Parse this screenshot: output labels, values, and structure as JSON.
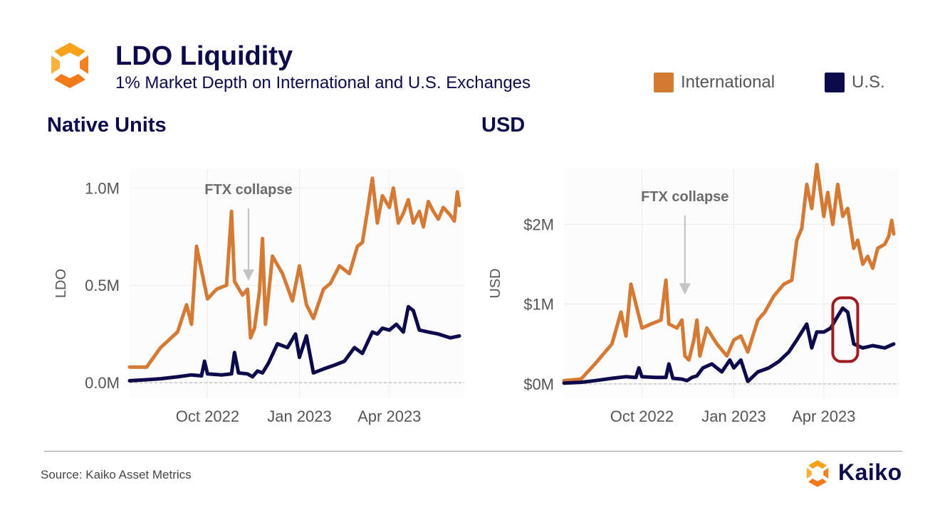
{
  "header": {
    "title": "LDO Liquidity",
    "subtitle": "1% Market Depth on International and U.S. Exchanges"
  },
  "legend": [
    {
      "label": "International",
      "color": "#D47A35"
    },
    {
      "label": "U.S.",
      "color": "#0C0A4A"
    }
  ],
  "footer": {
    "source": "Source: Kaiko Asset Metrics",
    "brand": "Kaiko"
  },
  "chart_data": [
    {
      "type": "line",
      "title": "Native Units",
      "ylabel": "LDO",
      "ytick_labels": [
        "0.0M",
        "0.5M",
        "1.0M"
      ],
      "ytick_values": [
        0,
        500000,
        1000000
      ],
      "xtick_labels": [
        "Oct 2022",
        "Jan 2023",
        "Apr 2023"
      ],
      "xtick_dates": [
        "2022-10-01",
        "2023-01-01",
        "2023-04-01"
      ],
      "xlim": [
        "2022-07-15",
        "2023-06-15"
      ],
      "ylim": [
        -80000,
        1100000
      ],
      "annotation": {
        "text": "FTX collapse",
        "date": "2022-11-11"
      },
      "series": [
        {
          "name": "International",
          "color": "#D47A35",
          "x": [
            "2022-07-15",
            "2022-08-01",
            "2022-08-15",
            "2022-09-01",
            "2022-09-10",
            "2022-09-15",
            "2022-09-20",
            "2022-10-01",
            "2022-10-10",
            "2022-10-20",
            "2022-10-25",
            "2022-10-28",
            "2022-11-05",
            "2022-11-10",
            "2022-11-13",
            "2022-11-17",
            "2022-11-22",
            "2022-11-25",
            "2022-11-28",
            "2022-12-05",
            "2022-12-15",
            "2022-12-25",
            "2023-01-01",
            "2023-01-08",
            "2023-01-15",
            "2023-01-25",
            "2023-02-01",
            "2023-02-10",
            "2023-02-20",
            "2023-02-28",
            "2023-03-05",
            "2023-03-10",
            "2023-03-15",
            "2023-03-20",
            "2023-03-25",
            "2023-04-01",
            "2023-04-05",
            "2023-04-10",
            "2023-04-15",
            "2023-04-20",
            "2023-04-25",
            "2023-05-01",
            "2023-05-05",
            "2023-05-10",
            "2023-05-15",
            "2023-05-20",
            "2023-05-25",
            "2023-06-01",
            "2023-06-05",
            "2023-06-08",
            "2023-06-10"
          ],
          "y": [
            80000,
            80000,
            180000,
            260000,
            400000,
            300000,
            700000,
            430000,
            480000,
            500000,
            880000,
            520000,
            450000,
            480000,
            230000,
            280000,
            470000,
            740000,
            300000,
            650000,
            560000,
            420000,
            600000,
            400000,
            330000,
            480000,
            510000,
            600000,
            560000,
            700000,
            720000,
            880000,
            1050000,
            820000,
            960000,
            900000,
            1000000,
            820000,
            870000,
            940000,
            820000,
            880000,
            800000,
            930000,
            880000,
            840000,
            900000,
            860000,
            830000,
            980000,
            910000
          ]
        },
        {
          "name": "U.S.",
          "color": "#0C0A4A",
          "x": [
            "2022-07-15",
            "2022-08-01",
            "2022-08-15",
            "2022-09-01",
            "2022-09-15",
            "2022-09-25",
            "2022-09-28",
            "2022-10-01",
            "2022-10-15",
            "2022-10-25",
            "2022-10-28",
            "2022-11-01",
            "2022-11-10",
            "2022-11-15",
            "2022-11-20",
            "2022-11-25",
            "2022-12-01",
            "2022-12-10",
            "2022-12-20",
            "2022-12-28",
            "2023-01-01",
            "2023-01-08",
            "2023-01-15",
            "2023-01-25",
            "2023-02-05",
            "2023-02-15",
            "2023-02-25",
            "2023-03-05",
            "2023-03-15",
            "2023-03-20",
            "2023-03-25",
            "2023-04-01",
            "2023-04-08",
            "2023-04-15",
            "2023-04-20",
            "2023-04-25",
            "2023-05-01",
            "2023-05-10",
            "2023-05-20",
            "2023-06-01",
            "2023-06-10"
          ],
          "y": [
            10000,
            15000,
            20000,
            30000,
            40000,
            35000,
            110000,
            45000,
            40000,
            45000,
            155000,
            50000,
            45000,
            30000,
            60000,
            50000,
            100000,
            200000,
            180000,
            250000,
            130000,
            240000,
            50000,
            70000,
            90000,
            110000,
            180000,
            150000,
            260000,
            250000,
            280000,
            270000,
            300000,
            260000,
            390000,
            370000,
            270000,
            260000,
            250000,
            230000,
            240000
          ]
        }
      ]
    },
    {
      "type": "line",
      "title": "USD",
      "ylabel": "USD",
      "ytick_labels": [
        "$0M",
        "$1M",
        "$2M"
      ],
      "ytick_values": [
        0,
        1000000,
        2000000
      ],
      "xtick_labels": [
        "Oct 2022",
        "Jan 2023",
        "Apr 2023"
      ],
      "xtick_dates": [
        "2022-10-01",
        "2023-01-01",
        "2023-04-01"
      ],
      "xlim": [
        "2022-07-15",
        "2023-06-15"
      ],
      "ylim": [
        -180000,
        2700000
      ],
      "annotation": {
        "text": "FTX collapse",
        "date": "2022-11-13"
      },
      "series": [
        {
          "name": "International",
          "color": "#D47A35",
          "x": [
            "2022-07-15",
            "2022-08-01",
            "2022-08-15",
            "2022-09-01",
            "2022-09-10",
            "2022-09-15",
            "2022-09-20",
            "2022-10-01",
            "2022-10-10",
            "2022-10-20",
            "2022-10-25",
            "2022-10-28",
            "2022-11-05",
            "2022-11-10",
            "2022-11-13",
            "2022-11-17",
            "2022-11-22",
            "2022-11-25",
            "2022-11-28",
            "2022-12-05",
            "2022-12-15",
            "2022-12-25",
            "2023-01-01",
            "2023-01-08",
            "2023-01-15",
            "2023-01-25",
            "2023-02-01",
            "2023-02-10",
            "2023-02-20",
            "2023-02-28",
            "2023-03-05",
            "2023-03-10",
            "2023-03-15",
            "2023-03-20",
            "2023-03-25",
            "2023-04-01",
            "2023-04-05",
            "2023-04-10",
            "2023-04-15",
            "2023-04-20",
            "2023-04-25",
            "2023-05-01",
            "2023-05-05",
            "2023-05-10",
            "2023-05-15",
            "2023-05-20",
            "2023-05-25",
            "2023-06-01",
            "2023-06-05",
            "2023-06-08",
            "2023-06-10"
          ],
          "y": [
            40000,
            60000,
            250000,
            500000,
            900000,
            600000,
            1250000,
            700000,
            750000,
            800000,
            1300000,
            750000,
            700000,
            800000,
            350000,
            300000,
            550000,
            800000,
            350000,
            700000,
            500000,
            350000,
            550000,
            600000,
            400000,
            800000,
            900000,
            1100000,
            1250000,
            1300000,
            1800000,
            1950000,
            2500000,
            2200000,
            2750000,
            2100000,
            2400000,
            2000000,
            2500000,
            2100000,
            2200000,
            1700000,
            1800000,
            1500000,
            1600000,
            1450000,
            1700000,
            1750000,
            1850000,
            2050000,
            1880000
          ]
        },
        {
          "name": "U.S.",
          "color": "#0C0A4A",
          "x": [
            "2022-07-15",
            "2022-08-01",
            "2022-08-15",
            "2022-09-01",
            "2022-09-15",
            "2022-09-25",
            "2022-09-28",
            "2022-10-01",
            "2022-10-15",
            "2022-10-25",
            "2022-10-28",
            "2022-11-01",
            "2022-11-10",
            "2022-11-15",
            "2022-11-20",
            "2022-11-25",
            "2022-12-01",
            "2022-12-10",
            "2022-12-20",
            "2022-12-28",
            "2023-01-01",
            "2023-01-08",
            "2023-01-15",
            "2023-01-25",
            "2023-02-05",
            "2023-02-15",
            "2023-02-25",
            "2023-03-05",
            "2023-03-15",
            "2023-03-20",
            "2023-03-25",
            "2023-04-01",
            "2023-04-08",
            "2023-04-15",
            "2023-04-20",
            "2023-04-25",
            "2023-05-01",
            "2023-05-10",
            "2023-05-20",
            "2023-06-01",
            "2023-06-10"
          ],
          "y": [
            10000,
            20000,
            40000,
            70000,
            90000,
            80000,
            200000,
            90000,
            80000,
            80000,
            250000,
            70000,
            60000,
            40000,
            80000,
            100000,
            200000,
            250000,
            150000,
            300000,
            200000,
            300000,
            30000,
            150000,
            200000,
            280000,
            400000,
            550000,
            750000,
            450000,
            650000,
            650000,
            700000,
            850000,
            950000,
            900000,
            500000,
            450000,
            480000,
            450000,
            500000
          ]
        }
      ],
      "highlight": {
        "x_start": "2023-04-10",
        "x_end": "2023-05-05",
        "y_start": 280000,
        "y_end": 1080000,
        "color": "#A01C22"
      }
    }
  ]
}
